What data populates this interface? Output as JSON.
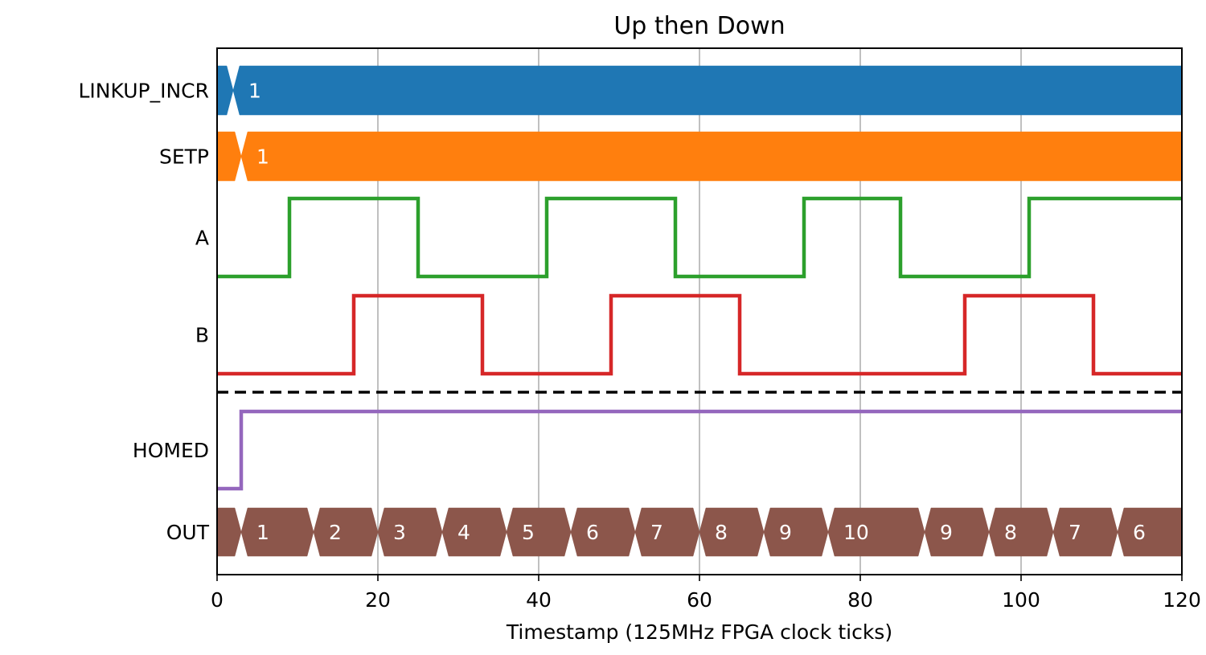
{
  "chart_data": {
    "type": "timing",
    "title": "Up then Down",
    "xlabel": "Timestamp (125MHz FPGA clock ticks)",
    "ylabel": "",
    "xlim": [
      0,
      120
    ],
    "xticks": [
      0,
      20,
      40,
      60,
      80,
      100,
      120
    ],
    "grid": "x-only",
    "separator": "dashed line between B and HOMED",
    "signals": [
      {
        "name": "LINKUP_INCR",
        "kind": "bus",
        "color": "#1f77b4",
        "segments": [
          {
            "start": 0,
            "end": 2,
            "label": ""
          },
          {
            "start": 2,
            "end": 120,
            "label": "1"
          }
        ]
      },
      {
        "name": "SETP",
        "kind": "bus",
        "color": "#ff7f0e",
        "segments": [
          {
            "start": 0,
            "end": 3,
            "label": ""
          },
          {
            "start": 3,
            "end": 120,
            "label": "1"
          }
        ]
      },
      {
        "name": "A",
        "kind": "bit",
        "color": "#2ca02c",
        "steps": [
          [
            0,
            0
          ],
          [
            9,
            1
          ],
          [
            25,
            0
          ],
          [
            41,
            1
          ],
          [
            57,
            0
          ],
          [
            73,
            1
          ],
          [
            85,
            0
          ],
          [
            101,
            1
          ]
        ]
      },
      {
        "name": "B",
        "kind": "bit",
        "color": "#d62728",
        "steps": [
          [
            0,
            0
          ],
          [
            17,
            1
          ],
          [
            33,
            0
          ],
          [
            49,
            1
          ],
          [
            65,
            0
          ],
          [
            93,
            1
          ],
          [
            109,
            0
          ]
        ]
      },
      {
        "name": "HOMED",
        "kind": "bit",
        "color": "#9467bd",
        "steps": [
          [
            0,
            0
          ],
          [
            3,
            1
          ]
        ]
      },
      {
        "name": "OUT",
        "kind": "bus",
        "color": "#8c564b",
        "segments": [
          {
            "start": 0,
            "end": 3,
            "label": ""
          },
          {
            "start": 3,
            "end": 12,
            "label": "1"
          },
          {
            "start": 12,
            "end": 20,
            "label": "2"
          },
          {
            "start": 20,
            "end": 28,
            "label": "3"
          },
          {
            "start": 28,
            "end": 36,
            "label": "4"
          },
          {
            "start": 36,
            "end": 44,
            "label": "5"
          },
          {
            "start": 44,
            "end": 52,
            "label": "6"
          },
          {
            "start": 52,
            "end": 60,
            "label": "7"
          },
          {
            "start": 60,
            "end": 68,
            "label": "8"
          },
          {
            "start": 68,
            "end": 76,
            "label": "9"
          },
          {
            "start": 76,
            "end": 88,
            "label": "10"
          },
          {
            "start": 88,
            "end": 96,
            "label": "9"
          },
          {
            "start": 96,
            "end": 104,
            "label": "8"
          },
          {
            "start": 104,
            "end": 112,
            "label": "7"
          },
          {
            "start": 112,
            "end": 120,
            "label": "6"
          }
        ]
      }
    ]
  }
}
